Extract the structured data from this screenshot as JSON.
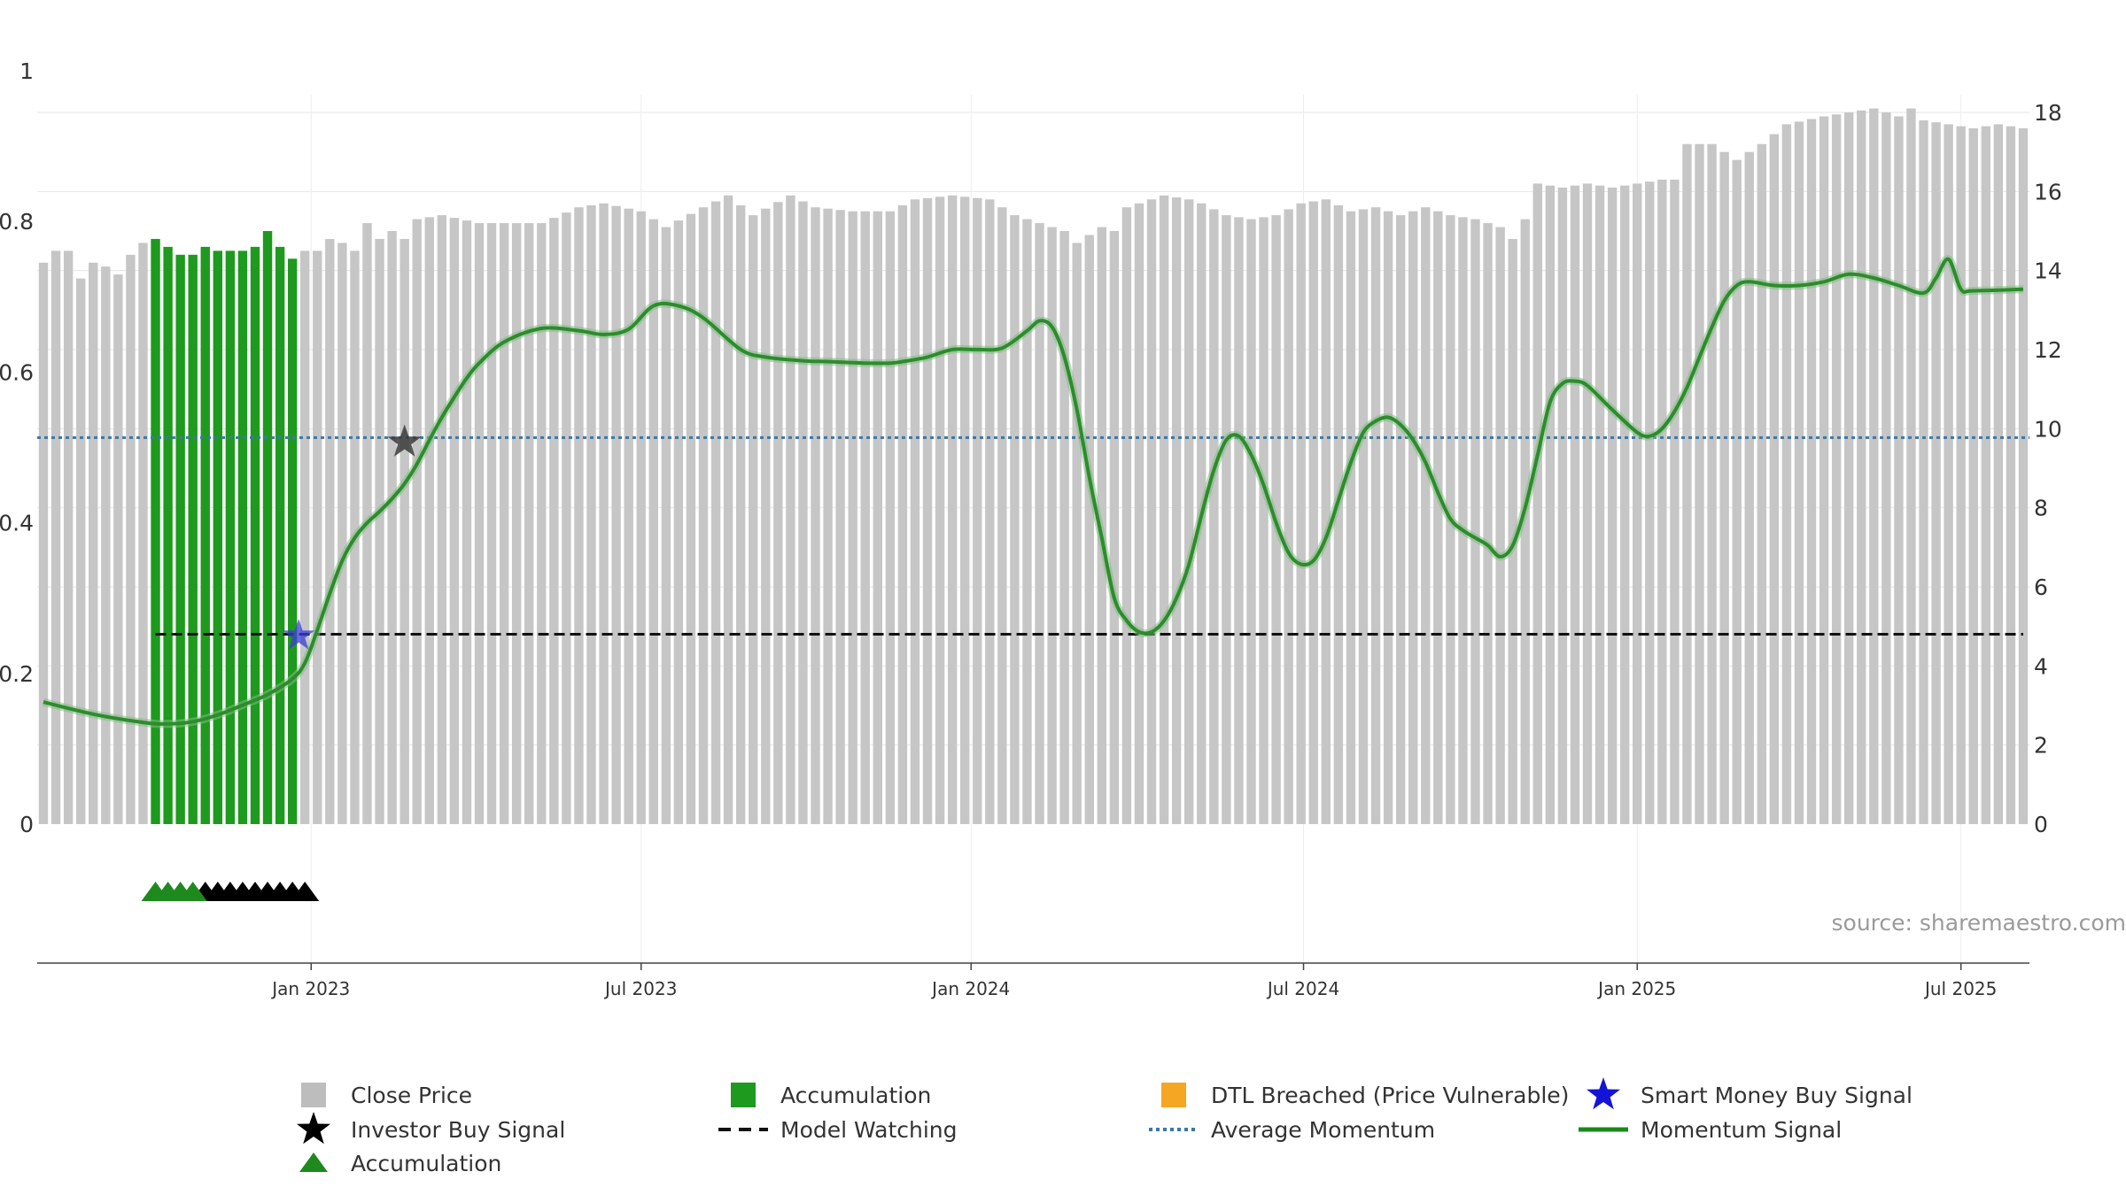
{
  "chart_data": {
    "type": "bar",
    "title": "",
    "source": "source: sharemaestro.com",
    "x_axis": {
      "ticks": [
        "Jan 2023",
        "Jul 2023",
        "Jan 2024",
        "Jul 2024",
        "Jan 2025",
        "Jul 2025"
      ]
    },
    "y_left": {
      "range": [
        0,
        1
      ],
      "ticks": [
        "0",
        "0.2",
        "0.4",
        "0.6",
        "0.8",
        "1"
      ]
    },
    "y_right": {
      "range": [
        0,
        18
      ],
      "ticks": [
        "0",
        "2",
        "4",
        "6",
        "8",
        "10",
        "12",
        "14",
        "16",
        "18"
      ]
    },
    "series": [
      {
        "name": "Close Price",
        "axis": "right",
        "color": "#c6c6c6",
        "accumulation_color": "#1e9a1e",
        "bar_count": 160,
        "anchors": [
          [
            0,
            14.2
          ],
          [
            1,
            14.5
          ],
          [
            2,
            14.5
          ],
          [
            3,
            13.8
          ],
          [
            4,
            14.2
          ],
          [
            5,
            14.1
          ],
          [
            6,
            13.9
          ],
          [
            7,
            14.4
          ],
          [
            8,
            14.7
          ],
          [
            9,
            14.8
          ],
          [
            10,
            14.6
          ],
          [
            11,
            14.4
          ],
          [
            12,
            14.4
          ],
          [
            13,
            14.6
          ],
          [
            14,
            14.5
          ],
          [
            15,
            14.5
          ],
          [
            16,
            14.5
          ],
          [
            17,
            14.6
          ],
          [
            18,
            15.0
          ],
          [
            19,
            14.6
          ],
          [
            20,
            14.3
          ],
          [
            21,
            14.5
          ],
          [
            22,
            14.5
          ],
          [
            23,
            14.8
          ],
          [
            24,
            14.7
          ],
          [
            25,
            14.5
          ],
          [
            26,
            15.2
          ],
          [
            27,
            14.8
          ],
          [
            28,
            15.0
          ],
          [
            29,
            14.8
          ],
          [
            30,
            15.3
          ],
          [
            32,
            15.4
          ],
          [
            35,
            15.2
          ],
          [
            40,
            15.2
          ],
          [
            43,
            15.6
          ],
          [
            45,
            15.7
          ],
          [
            48,
            15.5
          ],
          [
            50,
            15.1
          ],
          [
            53,
            15.6
          ],
          [
            55,
            15.9
          ],
          [
            57,
            15.4
          ],
          [
            60,
            15.9
          ],
          [
            62,
            15.6
          ],
          [
            65,
            15.5
          ],
          [
            68,
            15.5
          ],
          [
            70,
            15.8
          ],
          [
            73,
            15.9
          ],
          [
            76,
            15.8
          ],
          [
            78,
            15.4
          ],
          [
            80,
            15.2
          ],
          [
            82,
            15.0
          ],
          [
            83,
            14.7
          ],
          [
            85,
            15.1
          ],
          [
            86,
            15.0
          ],
          [
            87,
            15.6
          ],
          [
            90,
            15.9
          ],
          [
            92,
            15.8
          ],
          [
            93,
            15.7
          ],
          [
            95,
            15.4
          ],
          [
            97,
            15.3
          ],
          [
            99,
            15.4
          ],
          [
            101,
            15.7
          ],
          [
            103,
            15.8
          ],
          [
            105,
            15.5
          ],
          [
            107,
            15.6
          ],
          [
            109,
            15.4
          ],
          [
            111,
            15.6
          ],
          [
            113,
            15.4
          ],
          [
            115,
            15.3
          ],
          [
            117,
            15.1
          ],
          [
            118,
            14.8
          ],
          [
            119,
            15.3
          ],
          [
            120,
            16.2
          ],
          [
            122,
            16.1
          ],
          [
            124,
            16.2
          ],
          [
            126,
            16.1
          ],
          [
            128,
            16.2
          ],
          [
            130,
            16.3
          ],
          [
            131,
            16.3
          ],
          [
            132,
            17.2
          ],
          [
            134,
            17.2
          ],
          [
            136,
            16.8
          ],
          [
            138,
            17.2
          ],
          [
            140,
            17.7
          ],
          [
            143,
            17.9
          ],
          [
            145,
            18.0
          ],
          [
            147,
            18.1
          ],
          [
            149,
            17.9
          ],
          [
            150,
            18.1
          ],
          [
            151,
            17.8
          ],
          [
            153,
            17.7
          ],
          [
            155,
            17.6
          ],
          [
            157,
            17.7
          ],
          [
            159,
            17.6
          ]
        ],
        "accumulation_bars": [
          9,
          20
        ]
      },
      {
        "name": "Momentum Signal",
        "axis": "left",
        "color": "#2e8b2e",
        "points": [
          [
            0,
            0.162
          ],
          [
            4,
            0.146
          ],
          [
            8,
            0.135
          ],
          [
            10,
            0.133
          ],
          [
            12,
            0.136
          ],
          [
            14,
            0.145
          ],
          [
            16,
            0.158
          ],
          [
            18,
            0.172
          ],
          [
            20,
            0.193
          ],
          [
            21,
            0.214
          ],
          [
            22,
            0.258
          ],
          [
            23,
            0.306
          ],
          [
            24,
            0.35
          ],
          [
            25,
            0.38
          ],
          [
            26,
            0.4
          ],
          [
            27,
            0.415
          ],
          [
            28,
            0.432
          ],
          [
            29,
            0.452
          ],
          [
            30,
            0.478
          ],
          [
            31,
            0.51
          ],
          [
            32,
            0.54
          ],
          [
            33,
            0.567
          ],
          [
            34,
            0.592
          ],
          [
            35,
            0.612
          ],
          [
            37,
            0.64
          ],
          [
            40,
            0.658
          ],
          [
            43,
            0.655
          ],
          [
            45,
            0.65
          ],
          [
            47,
            0.657
          ],
          [
            49,
            0.688
          ],
          [
            51,
            0.688
          ],
          [
            53,
            0.672
          ],
          [
            56,
            0.63
          ],
          [
            58,
            0.62
          ],
          [
            61,
            0.615
          ],
          [
            63,
            0.614
          ],
          [
            66,
            0.612
          ],
          [
            68,
            0.612
          ],
          [
            69,
            0.614
          ],
          [
            71,
            0.62
          ],
          [
            73,
            0.63
          ],
          [
            75,
            0.63
          ],
          [
            77,
            0.632
          ],
          [
            79,
            0.655
          ],
          [
            80,
            0.668
          ],
          [
            81,
            0.66
          ],
          [
            82,
            0.62
          ],
          [
            83,
            0.55
          ],
          [
            84,
            0.46
          ],
          [
            85,
            0.38
          ],
          [
            86,
            0.3
          ],
          [
            87,
            0.27
          ],
          [
            88,
            0.255
          ],
          [
            89,
            0.255
          ],
          [
            90,
            0.27
          ],
          [
            91,
            0.3
          ],
          [
            92,
            0.345
          ],
          [
            93,
            0.41
          ],
          [
            94,
            0.47
          ],
          [
            95,
            0.51
          ],
          [
            96,
            0.515
          ],
          [
            97,
            0.49
          ],
          [
            98,
            0.45
          ],
          [
            99,
            0.4
          ],
          [
            100,
            0.36
          ],
          [
            101,
            0.345
          ],
          [
            102,
            0.35
          ],
          [
            103,
            0.38
          ],
          [
            104,
            0.43
          ],
          [
            105,
            0.48
          ],
          [
            106,
            0.52
          ],
          [
            107,
            0.535
          ],
          [
            108,
            0.54
          ],
          [
            109,
            0.53
          ],
          [
            110,
            0.51
          ],
          [
            111,
            0.48
          ],
          [
            112,
            0.44
          ],
          [
            113,
            0.405
          ],
          [
            114,
            0.39
          ],
          [
            115,
            0.38
          ],
          [
            116,
            0.37
          ],
          [
            117,
            0.355
          ],
          [
            118,
            0.37
          ],
          [
            119,
            0.42
          ],
          [
            120,
            0.49
          ],
          [
            121,
            0.56
          ],
          [
            122,
            0.585
          ],
          [
            123,
            0.588
          ],
          [
            124,
            0.582
          ],
          [
            126,
            0.55
          ],
          [
            128,
            0.52
          ],
          [
            129,
            0.515
          ],
          [
            130,
            0.525
          ],
          [
            131,
            0.548
          ],
          [
            132,
            0.58
          ],
          [
            133,
            0.62
          ],
          [
            134,
            0.66
          ],
          [
            135,
            0.695
          ],
          [
            136,
            0.715
          ],
          [
            137,
            0.72
          ],
          [
            139,
            0.715
          ],
          [
            141,
            0.715
          ],
          [
            143,
            0.72
          ],
          [
            145,
            0.73
          ],
          [
            147,
            0.725
          ],
          [
            149,
            0.715
          ],
          [
            151,
            0.705
          ],
          [
            152,
            0.725
          ],
          [
            153,
            0.75
          ],
          [
            154,
            0.71
          ],
          [
            155,
            0.708
          ],
          [
            159,
            0.71
          ]
        ]
      },
      {
        "name": "Average Momentum",
        "axis": "left",
        "color": "#3a78a8",
        "value": 0.513
      },
      {
        "name": "Model Watching",
        "axis": "left",
        "color": "#111111",
        "value": 0.252,
        "start_bar": 9,
        "end_bar": 159
      },
      {
        "name": "Investor Buy Signal",
        "color": "#222222",
        "points": [
          {
            "bar": 29,
            "value": 0.507
          }
        ]
      },
      {
        "name": "Smart Money Buy Signal",
        "color": "#1a1ad8",
        "points": [
          {
            "bar": 20.5,
            "value": 0.25
          }
        ]
      },
      {
        "name": "Accumulation",
        "marker": "triangle",
        "green_color": "#1e8a1e",
        "black_color": "#000000",
        "green_bars": [
          9,
          10,
          11,
          12
        ],
        "black_bars": [
          13,
          14,
          15,
          16,
          17,
          18,
          19,
          20,
          21
        ]
      }
    ],
    "legend": {
      "placement": "bottom",
      "items": [
        {
          "label": "Close Price",
          "symbol": "square",
          "color": "#bdbdbd"
        },
        {
          "label": "Accumulation",
          "symbol": "square",
          "color": "#1e9a1e"
        },
        {
          "label": "DTL Breached (Price Vulnerable)",
          "symbol": "square",
          "color": "#f5a623"
        },
        {
          "label": "Smart Money Buy Signal",
          "symbol": "star",
          "color": "#1414d8"
        },
        {
          "label": "Investor Buy Signal",
          "symbol": "star",
          "color": "#000000"
        },
        {
          "label": "Model Watching",
          "symbol": "dash",
          "color": "#111111"
        },
        {
          "label": "Average Momentum",
          "symbol": "dot",
          "color": "#3a78a8"
        },
        {
          "label": "Momentum Signal",
          "symbol": "line",
          "color": "#1a8a1a"
        },
        {
          "label": "Accumulation",
          "symbol": "triangle",
          "color": "#1e8a1e"
        }
      ]
    }
  }
}
